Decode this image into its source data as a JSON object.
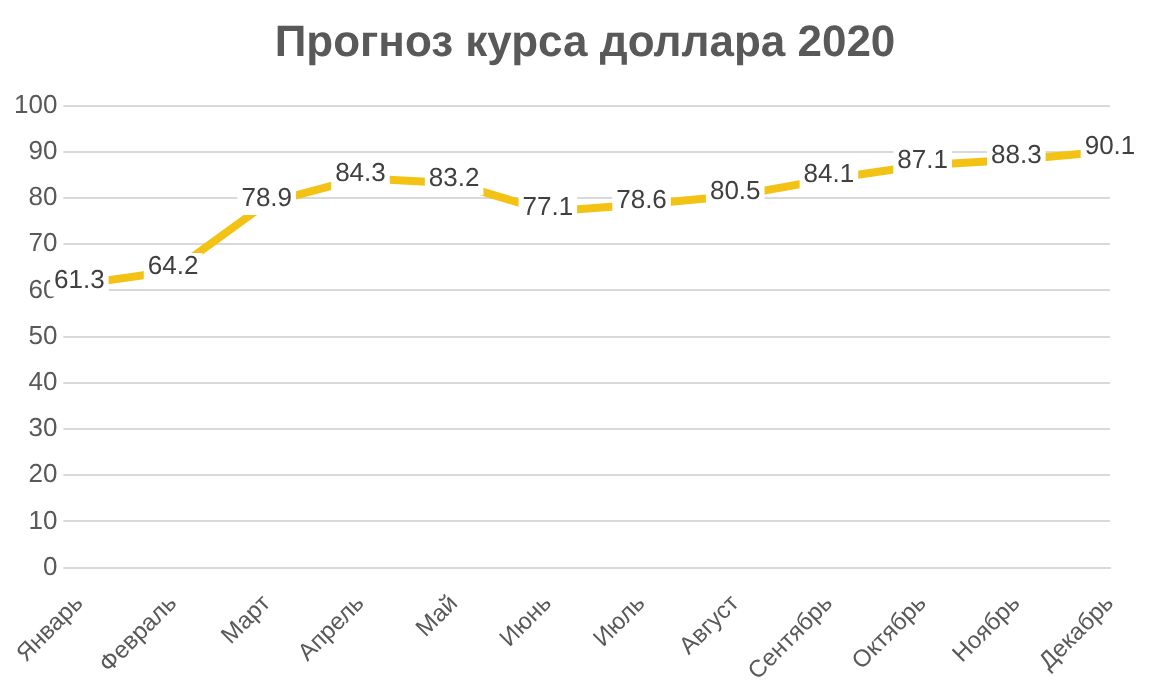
{
  "chart_data": {
    "type": "line",
    "title": "Прогноз курса доллара 2020",
    "categories": [
      "Январь",
      "Февраль",
      "Март",
      "Апрель",
      "Май",
      "Июнь",
      "Июль",
      "Август",
      "Сентябрь",
      "Октябрь",
      "Ноябрь",
      "Декабрь"
    ],
    "series": [
      {
        "color": "#f2c314",
        "values": [
          61.3,
          64.2,
          78.9,
          84.3,
          83.2,
          77.1,
          78.6,
          80.5,
          84.1,
          87.1,
          88.3,
          90.1
        ]
      }
    ],
    "ylim": [
      0,
      100
    ],
    "yticks": [
      0,
      10,
      20,
      30,
      40,
      50,
      60,
      70,
      80,
      90,
      100
    ],
    "grid": "y",
    "legend": false,
    "marker": "none",
    "data_labels": true
  }
}
